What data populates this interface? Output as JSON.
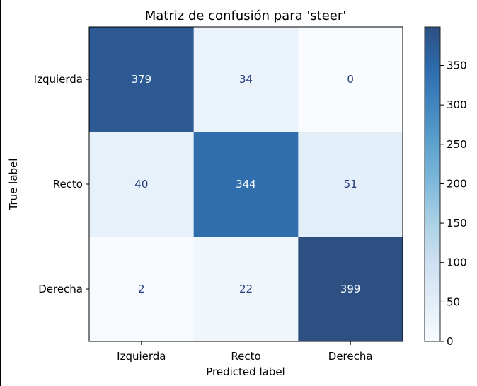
{
  "chart_data": {
    "type": "heatmap",
    "title": "Matriz de confusión para 'steer'",
    "xlabel": "Predicted label",
    "ylabel": "True label",
    "row_labels": [
      "Izquierda",
      "Recto",
      "Derecha"
    ],
    "col_labels": [
      "Izquierda",
      "Recto",
      "Derecha"
    ],
    "values": [
      [
        379,
        34,
        0
      ],
      [
        40,
        344,
        51
      ],
      [
        2,
        22,
        399
      ]
    ],
    "colormap": "Blues",
    "colorbar": {
      "min": 0,
      "max": 399,
      "ticks": [
        0,
        50,
        100,
        150,
        200,
        250,
        300,
        350
      ]
    }
  }
}
